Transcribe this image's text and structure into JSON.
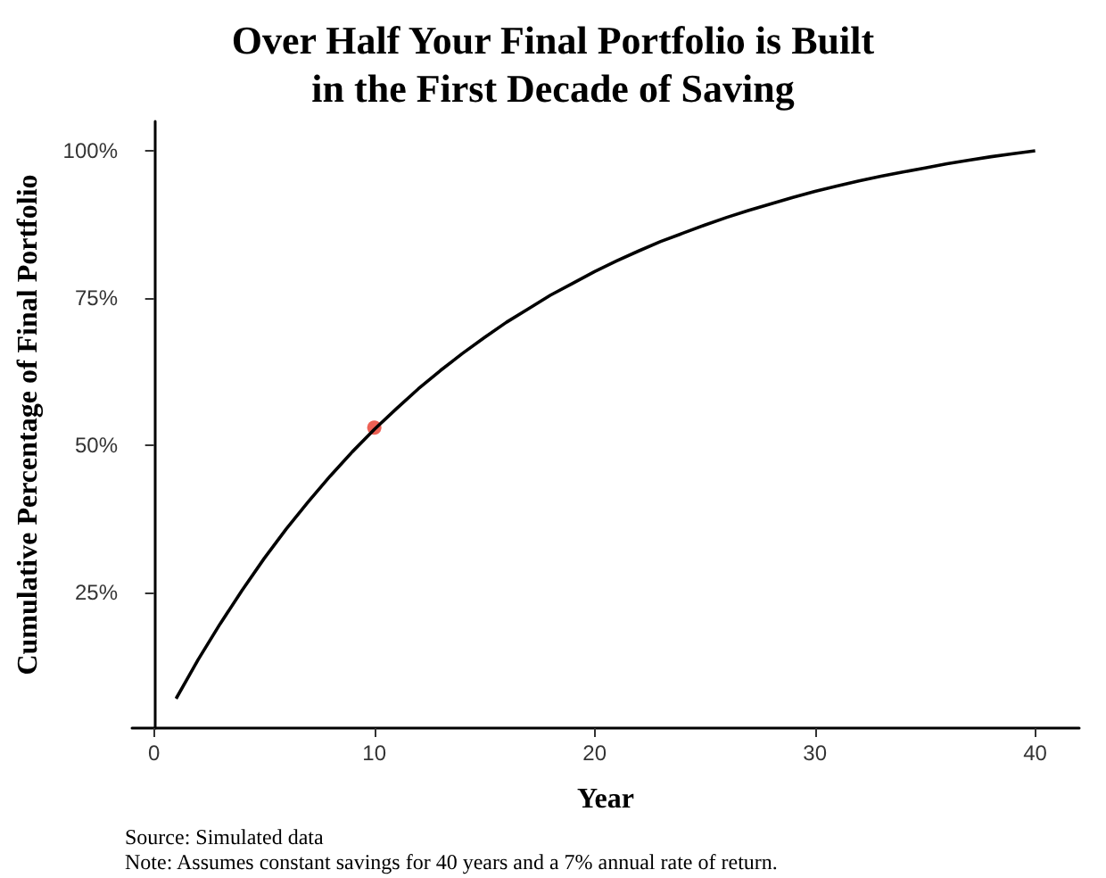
{
  "chart_data": {
    "type": "line",
    "title": "Over Half Your Final Portfolio is Built\nin the First Decade of Saving",
    "xlabel": "Year",
    "ylabel": "Cumulative Percentage of Final Portfolio",
    "x": [
      1,
      2,
      3,
      4,
      5,
      6,
      7,
      8,
      9,
      10,
      11,
      12,
      13,
      14,
      15,
      16,
      17,
      18,
      19,
      20,
      21,
      22,
      23,
      24,
      25,
      26,
      27,
      28,
      29,
      30,
      31,
      32,
      33,
      34,
      35,
      36,
      37,
      38,
      39,
      40
    ],
    "series": [
      {
        "color": "#000000",
        "values": [
          7.0,
          13.6,
          19.7,
          25.4,
          30.8,
          35.8,
          40.4,
          44.8,
          48.9,
          52.7,
          56.2,
          59.6,
          62.7,
          65.6,
          68.3,
          70.9,
          73.2,
          75.5,
          77.5,
          79.5,
          81.3,
          83.0,
          84.6,
          86.0,
          87.4,
          88.7,
          89.9,
          91.0,
          92.1,
          93.1,
          94.0,
          94.9,
          95.7,
          96.4,
          97.1,
          97.8,
          98.4,
          99.0,
          99.5,
          100
        ]
      },
      {
        "type": "scatter",
        "color": "#e8392b",
        "x": [
          10
        ],
        "values": [
          53
        ]
      }
    ],
    "xlim": [
      -1,
      42
    ],
    "xticks": [
      0,
      10,
      20,
      30,
      40
    ],
    "ylim": [
      2,
      105
    ],
    "yticks": [
      {
        "value": 25,
        "label": "25%"
      },
      {
        "value": 50,
        "label": "50%"
      },
      {
        "value": 75,
        "label": "75%"
      },
      {
        "value": 100,
        "label": "100%"
      }
    ],
    "grid": false,
    "annotations": [
      "Source: Simulated data",
      "Note: Assumes constant savings for 40 years and a 7% annual rate of return."
    ]
  }
}
